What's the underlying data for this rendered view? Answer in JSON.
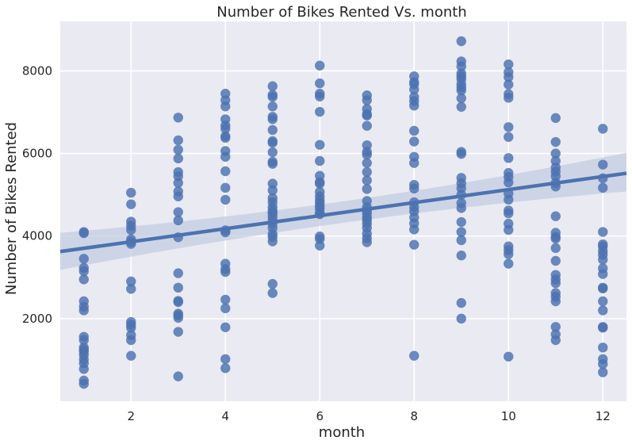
{
  "chart_data": {
    "type": "scatter",
    "title": "Number of Bikes Rented Vs. month",
    "xlabel": "month",
    "ylabel": "Number of Bikes Rented",
    "xlim": [
      0.5,
      12.5
    ],
    "ylim": [
      0,
      9200
    ],
    "x_ticks": [
      "2",
      "4",
      "6",
      "8",
      "10",
      "12"
    ],
    "y_ticks": [
      "2000",
      "4000",
      "6000",
      "8000"
    ],
    "grid": true,
    "colors": {
      "background": "#eaeaf2",
      "grid": "#ffffff",
      "points": "#4c72b0",
      "regression_line": "#4c72b0",
      "confidence_band": "#c0cbe0"
    },
    "regression": {
      "intercept": 3546,
      "slope": 158,
      "ci_low_at_x_min": 3180,
      "ci_high_at_x_min": 4080,
      "ci_low_at_x_max": 5080,
      "ci_high_at_x_max": 6020
    },
    "series": [
      {
        "x": 1,
        "values": [
          4100,
          4070,
          3450,
          3230,
          3150,
          2950,
          2420,
          2290,
          2200,
          1560,
          1480,
          1300,
          1250,
          1200,
          1120,
          1010,
          920,
          780,
          500,
          420
        ]
      },
      {
        "x": 2,
        "values": [
          5050,
          4770,
          4350,
          4250,
          4150,
          3920,
          3860,
          3810,
          2900,
          2720,
          1920,
          1850,
          1780,
          1600,
          1480,
          1100
        ]
      },
      {
        "x": 3,
        "values": [
          6870,
          6320,
          6090,
          5880,
          5550,
          5450,
          5290,
          5080,
          4960,
          4580,
          4380,
          3970,
          3100,
          2750,
          2430,
          2400,
          2120,
          2080,
          2020,
          1680,
          600
        ]
      },
      {
        "x": 4,
        "values": [
          7450,
          7290,
          7140,
          6830,
          6680,
          6600,
          6420,
          6380,
          6060,
          5920,
          5570,
          5170,
          4880,
          4140,
          4090,
          3330,
          3200,
          3130,
          2460,
          2250,
          1790,
          1020,
          800
        ]
      },
      {
        "x": 5,
        "values": [
          7630,
          7420,
          7370,
          7140,
          6890,
          6830,
          6570,
          6300,
          6260,
          6030,
          5800,
          5750,
          5270,
          5110,
          4920,
          4820,
          4700,
          4610,
          4560,
          4480,
          4390,
          4300,
          4200,
          4050,
          3980,
          3870,
          2840,
          2620
        ]
      },
      {
        "x": 6,
        "values": [
          8130,
          7700,
          7450,
          7380,
          7010,
          6210,
          5820,
          5460,
          5310,
          5270,
          5070,
          4960,
          4870,
          4800,
          4720,
          4660,
          4560,
          4530,
          3990,
          3930,
          3770
        ]
      },
      {
        "x": 7,
        "values": [
          7410,
          7290,
          7080,
          6950,
          6920,
          6670,
          6200,
          6040,
          5970,
          5770,
          5550,
          5350,
          5140,
          4850,
          4700,
          4620,
          4550,
          4450,
          4390,
          4300,
          4200,
          4060,
          3950,
          3850
        ]
      },
      {
        "x": 8,
        "values": [
          7870,
          7730,
          7680,
          7550,
          7370,
          7270,
          7160,
          6550,
          6290,
          5920,
          5770,
          5240,
          5150,
          4820,
          4700,
          4600,
          4450,
          4310,
          4160,
          3790,
          1100
        ]
      },
      {
        "x": 9,
        "values": [
          8720,
          8230,
          8110,
          7940,
          7870,
          7800,
          7680,
          7600,
          7530,
          7340,
          7130,
          6040,
          5990,
          5410,
          5280,
          5160,
          5000,
          4800,
          4680,
          4340,
          4100,
          3900,
          3530,
          2380,
          2000
        ]
      },
      {
        "x": 10,
        "values": [
          8160,
          7970,
          7850,
          7670,
          7440,
          7350,
          6640,
          6400,
          5890,
          5530,
          5430,
          5300,
          5030,
          4880,
          4620,
          4550,
          4300,
          4150,
          3750,
          3660,
          3560,
          3330,
          1080
        ]
      },
      {
        "x": 11,
        "values": [
          6860,
          6280,
          6000,
          5820,
          5660,
          5560,
          5450,
          5290,
          5200,
          4480,
          4080,
          3980,
          3940,
          3710,
          3400,
          3060,
          2950,
          2860,
          2620,
          2530,
          2420,
          1800,
          1620,
          1480
        ]
      },
      {
        "x": 12,
        "values": [
          6600,
          5730,
          5400,
          5170,
          4100,
          3800,
          3750,
          3640,
          3550,
          3430,
          3220,
          3080,
          2750,
          2730,
          2420,
          2200,
          1800,
          1780,
          1300,
          1020,
          900,
          700
        ]
      }
    ]
  }
}
